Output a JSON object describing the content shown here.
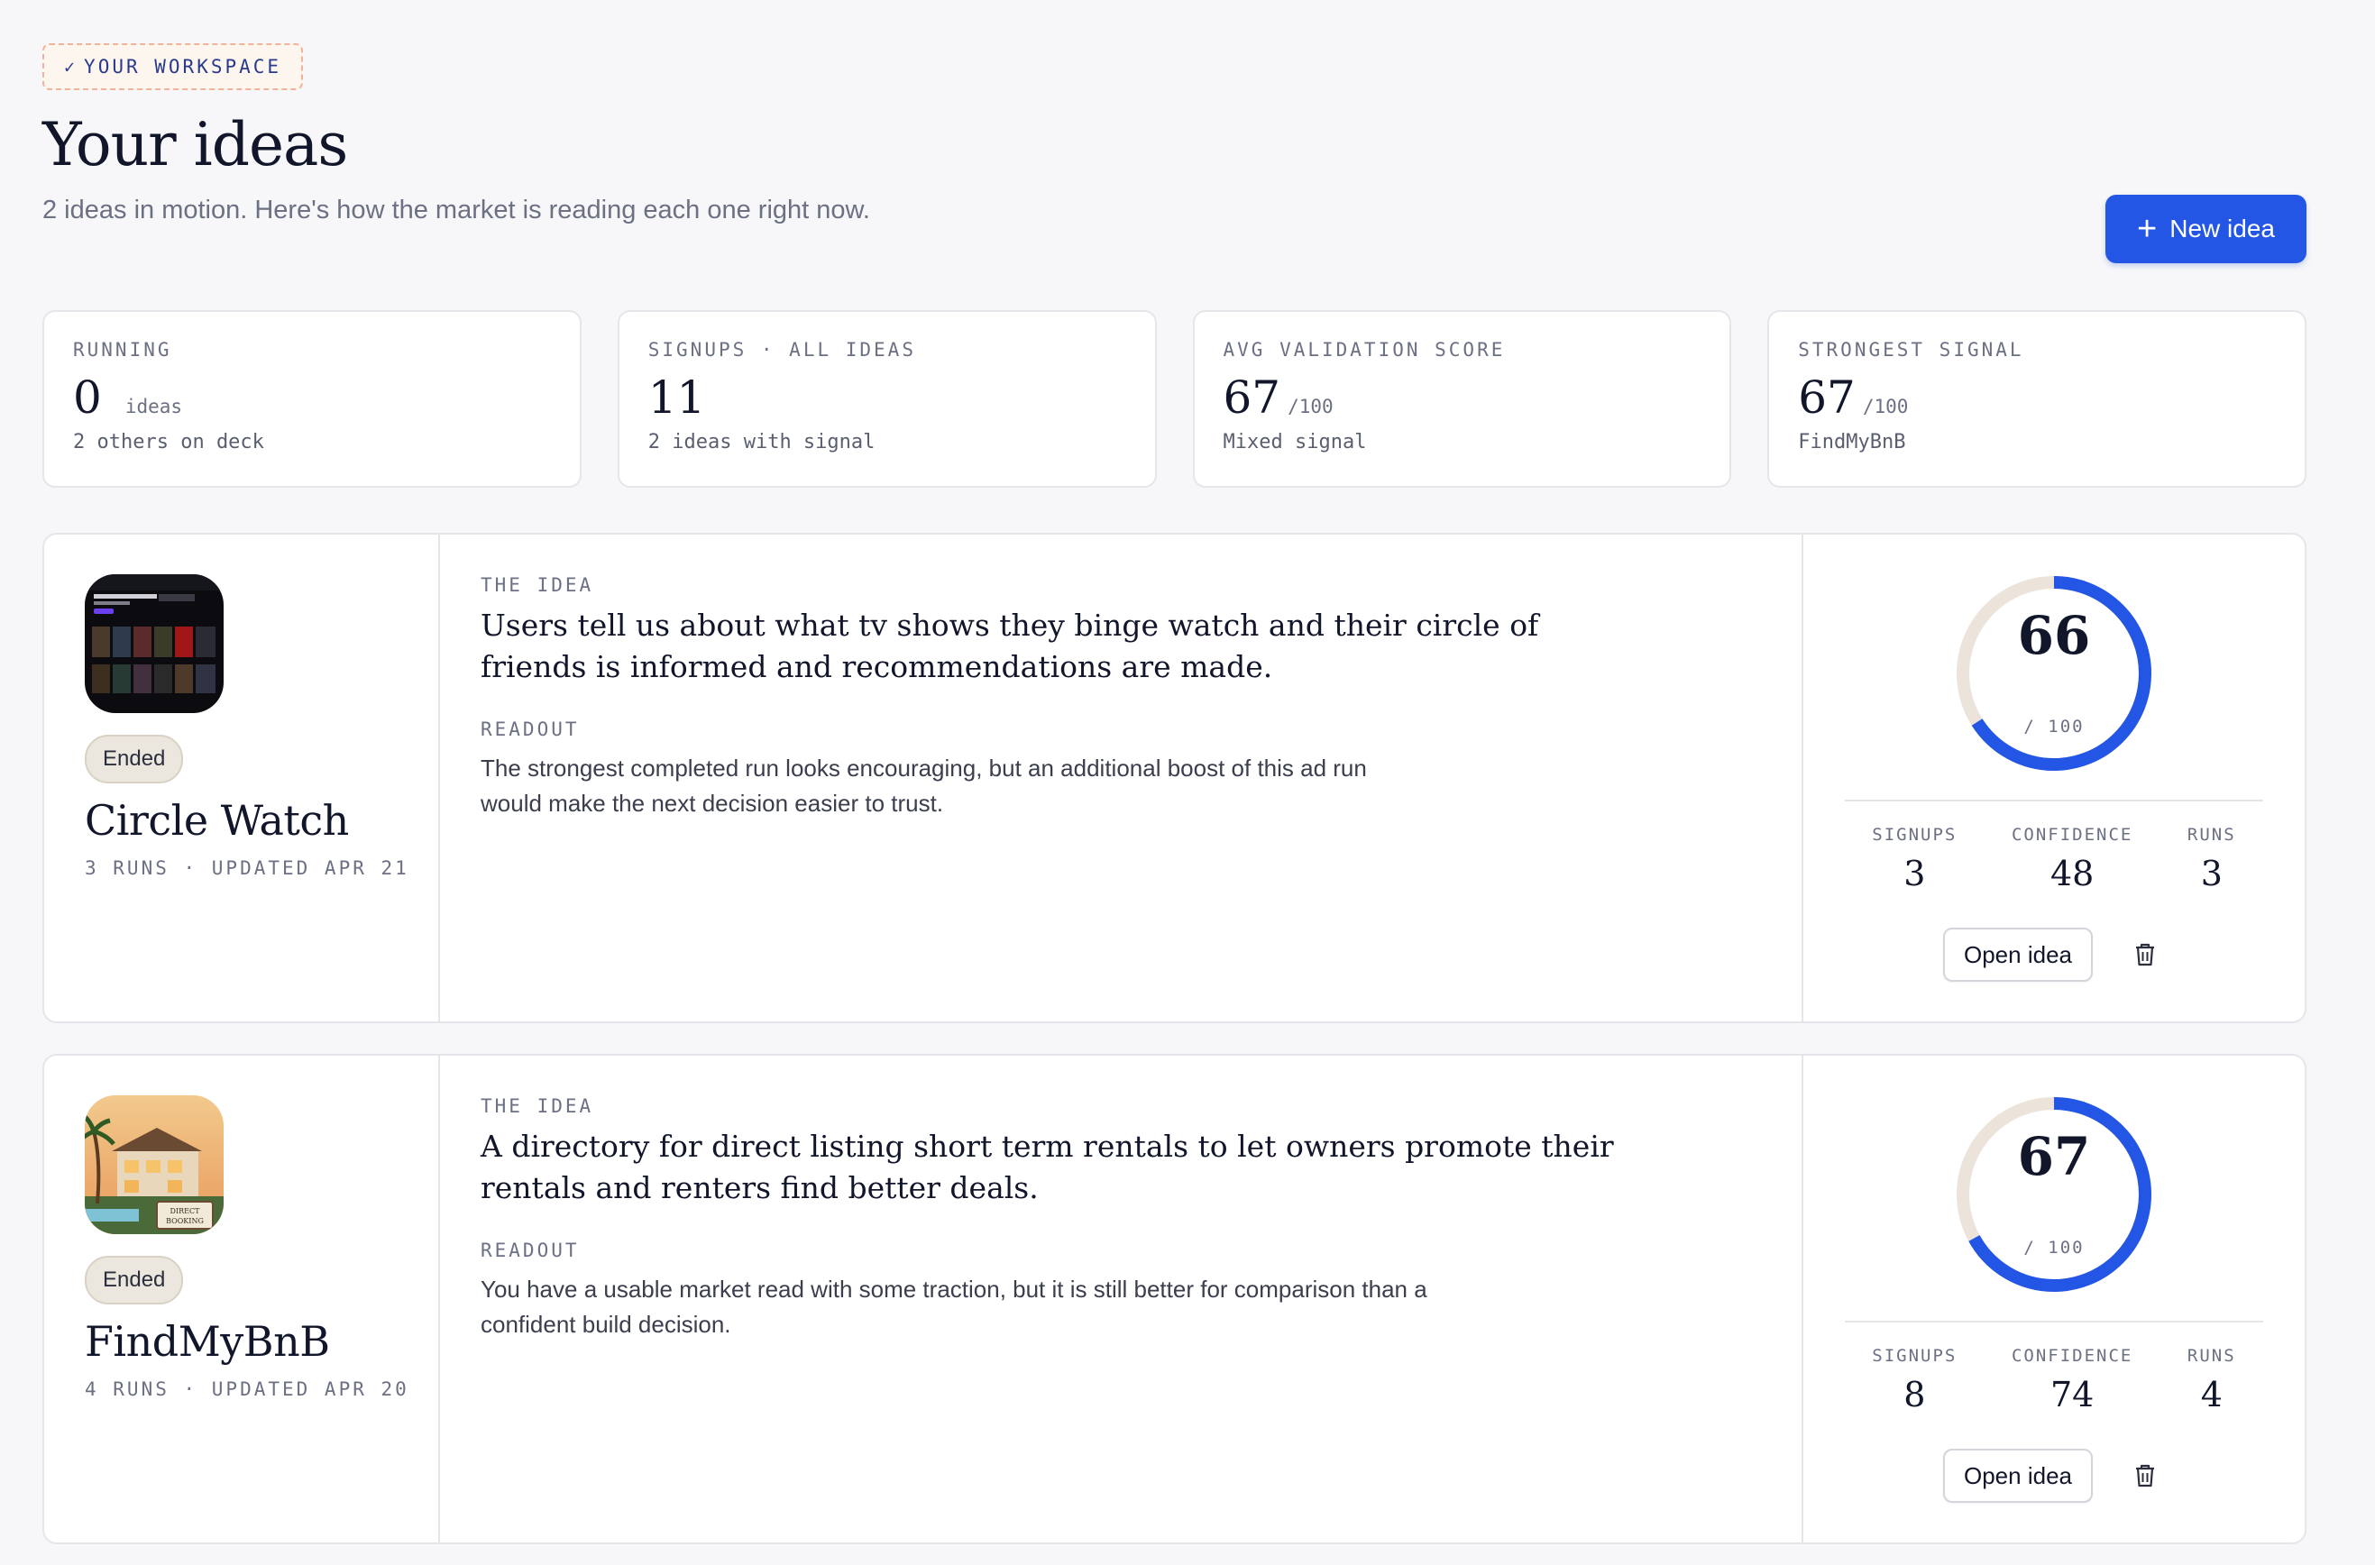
{
  "header": {
    "badge_check": "✓",
    "badge": "YOUR WORKSPACE",
    "title": "Your ideas",
    "subtitle": "2 ideas in motion. Here's how the market is reading each one right now.",
    "new_button_label": "New idea"
  },
  "stats": [
    {
      "label": "RUNNING",
      "value": "0",
      "unit": "ideas",
      "sub": "2 others on deck"
    },
    {
      "label": "SIGNUPS · ALL IDEAS",
      "value": "11",
      "unit": "",
      "sub": "2 ideas with signal"
    },
    {
      "label": "AVG VALIDATION SCORE",
      "value": "67",
      "unit": "/100",
      "sub": "Mixed signal"
    },
    {
      "label": "STRONGEST SIGNAL",
      "value": "67",
      "unit": "/100",
      "sub": "FindMyBnB"
    }
  ],
  "labels": {
    "the_idea": "THE IDEA",
    "readout": "READOUT",
    "signups": "SIGNUPS",
    "confidence": "CONFIDENCE",
    "runs": "RUNS",
    "score_of": "/ 100",
    "open_button": "Open idea"
  },
  "ideas": [
    {
      "status": "Ended",
      "name": "Circle Watch",
      "meta": "3 RUNS · UPDATED APR 21",
      "idea": "Users tell us about what tv shows they binge watch and their circle of friends is informed and recommendations are made.",
      "readout": "The strongest completed run looks encouraging, but an additional boost of this ad run would make the next decision easier to trust.",
      "score": "66",
      "score_fraction": 0.66,
      "signups": "3",
      "confidence": "48",
      "runs": "3"
    },
    {
      "status": "Ended",
      "name": "FindMyBnB",
      "meta": "4 RUNS · UPDATED APR 20",
      "idea": "A directory for direct listing short term rentals to let owners promote their rentals and renters find better deals.",
      "readout": "You have a usable market read with some traction, but it is still better for comparison than a confident build decision.",
      "score": "67",
      "score_fraction": 0.67,
      "signups": "8",
      "confidence": "74",
      "runs": "4",
      "thumb_sign": "DIRECT BOOKING"
    }
  ],
  "colors": {
    "accent": "#2456e6",
    "ring_track": "#ece4da",
    "pill_bg": "#ece7de"
  }
}
